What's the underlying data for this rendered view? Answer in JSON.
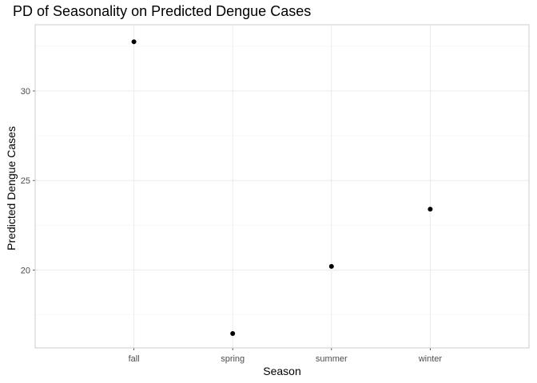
{
  "chart_data": {
    "type": "scatter",
    "title": "PD of Seasonality on Predicted Dengue Cases",
    "xlabel": "Season",
    "ylabel": "Predicted Dengue Cases",
    "categories": [
      "fall",
      "spring",
      "summer",
      "winter"
    ],
    "series": [
      {
        "values": [
          32.75,
          16.45,
          20.2,
          23.4
        ]
      }
    ],
    "ylim": [
      15.65,
      33.7
    ],
    "yticks": [
      20,
      25,
      30
    ],
    "grid": true,
    "point_color": "#000000",
    "grid_color": "#ebebeb",
    "panel_border_color": "#cccccc",
    "tick_text_color": "#4d4d4d"
  }
}
